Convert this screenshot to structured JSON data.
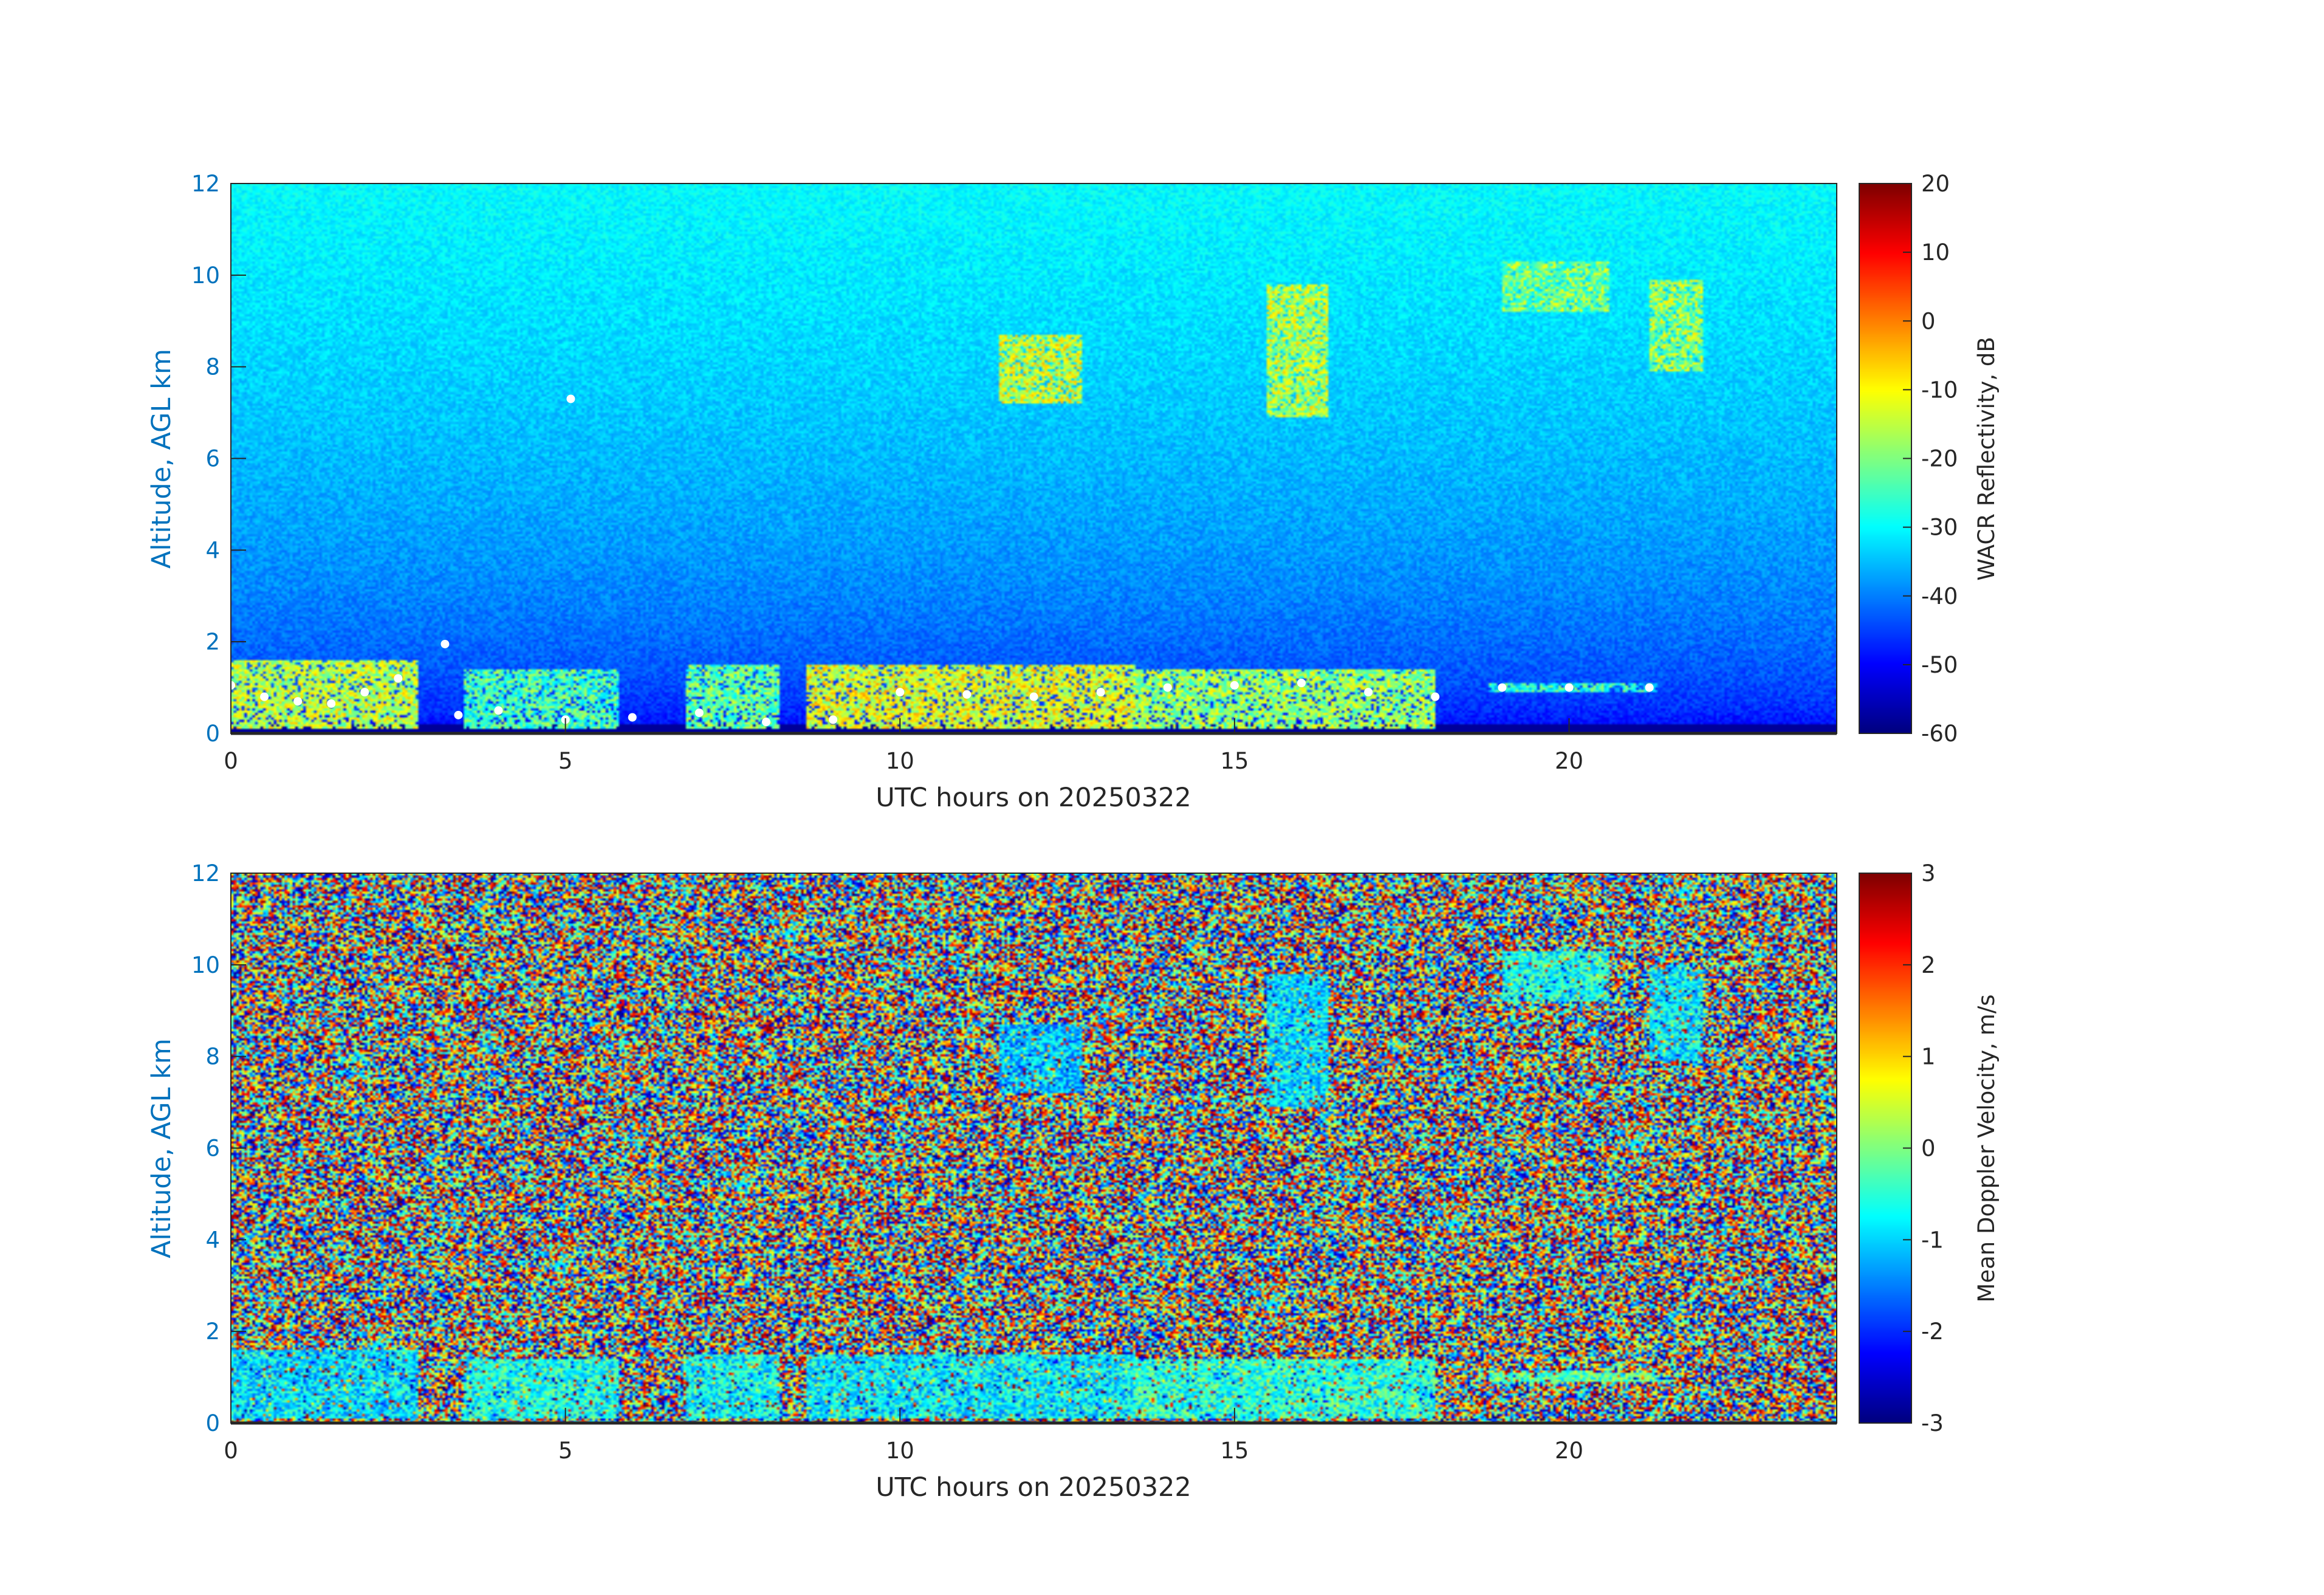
{
  "chart_data": [
    {
      "type": "heatmap",
      "xlabel": "UTC hours on 20250322",
      "ylabel": "Altitude, AGL km",
      "xlim": [
        0,
        24
      ],
      "ylim": [
        0,
        12
      ],
      "xticks": [
        0,
        5,
        10,
        15,
        20
      ],
      "xtick_labels": [
        "0",
        "5",
        "10",
        "15",
        "20"
      ],
      "yticks": [
        0,
        2,
        4,
        6,
        8,
        10,
        12
      ],
      "ytick_labels": [
        "0",
        "2",
        "4",
        "6",
        "8",
        "10",
        "12"
      ],
      "colorbar": {
        "label": "WACR Reflectivity, dB",
        "range": [
          -60,
          20
        ],
        "ticks": [
          20,
          10,
          0,
          -10,
          -20,
          -30,
          -40,
          -50,
          -60
        ],
        "tick_labels": [
          "20",
          "10",
          "0",
          "-10",
          "-20",
          "-30",
          "-40",
          "-50",
          "-60"
        ],
        "colormap": "jet"
      },
      "background": {
        "noise_top": -30,
        "noise_bottom": -55,
        "lowest_layer_km": 0.2,
        "lowest_layer_value": -58
      },
      "features": [
        {
          "x_range": [
            0,
            2.8
          ],
          "alt_range": [
            0.1,
            1.6
          ],
          "value": -15
        },
        {
          "x_range": [
            3.5,
            5.8
          ],
          "alt_range": [
            0.1,
            1.4
          ],
          "value": -25
        },
        {
          "x_range": [
            6.8,
            8.2
          ],
          "alt_range": [
            0.1,
            1.5
          ],
          "value": -22
        },
        {
          "x_range": [
            8.6,
            13.5
          ],
          "alt_range": [
            0.1,
            1.5
          ],
          "value": -12
        },
        {
          "x_range": [
            13.5,
            18
          ],
          "alt_range": [
            0.1,
            1.4
          ],
          "value": -18
        },
        {
          "x_range": [
            18.8,
            21.3
          ],
          "alt_range": [
            0.9,
            1.1
          ],
          "value": -28
        },
        {
          "x_range": [
            11.5,
            12.7
          ],
          "alt_range": [
            7.2,
            8.7
          ],
          "value": -14
        },
        {
          "x_range": [
            15.5,
            16.4
          ],
          "alt_range": [
            6.9,
            9.8
          ],
          "value": -16
        },
        {
          "x_range": [
            19,
            20.6
          ],
          "alt_range": [
            9.2,
            10.3
          ],
          "value": -20
        },
        {
          "x_range": [
            21.2,
            22
          ],
          "alt_range": [
            7.9,
            9.9
          ],
          "value": -18
        }
      ],
      "cloud_base_markers": [
        {
          "x": 0,
          "y": 1.05
        },
        {
          "x": 0.5,
          "y": 0.8
        },
        {
          "x": 1,
          "y": 0.7
        },
        {
          "x": 1.5,
          "y": 0.65
        },
        {
          "x": 2,
          "y": 0.9
        },
        {
          "x": 2.5,
          "y": 1.2
        },
        {
          "x": 3.2,
          "y": 1.95
        },
        {
          "x": 3.4,
          "y": 0.4
        },
        {
          "x": 4,
          "y": 0.5
        },
        {
          "x": 5,
          "y": 0.3
        },
        {
          "x": 5.08,
          "y": 7.3
        },
        {
          "x": 6,
          "y": 0.35
        },
        {
          "x": 7,
          "y": 0.45
        },
        {
          "x": 8,
          "y": 0.25
        },
        {
          "x": 9,
          "y": 0.3
        },
        {
          "x": 10,
          "y": 0.9
        },
        {
          "x": 11,
          "y": 0.85
        },
        {
          "x": 12,
          "y": 0.8
        },
        {
          "x": 13,
          "y": 0.9
        },
        {
          "x": 14,
          "y": 1
        },
        {
          "x": 15,
          "y": 1.05
        },
        {
          "x": 16,
          "y": 1.1
        },
        {
          "x": 17,
          "y": 0.9
        },
        {
          "x": 18,
          "y": 0.8
        },
        {
          "x": 19,
          "y": 1
        },
        {
          "x": 20,
          "y": 1
        },
        {
          "x": 21.2,
          "y": 1
        }
      ]
    },
    {
      "type": "heatmap",
      "xlabel": "UTC hours on 20250322",
      "ylabel": "Altitude, AGL km",
      "xlim": [
        0,
        24
      ],
      "ylim": [
        0,
        12
      ],
      "xticks": [
        0,
        5,
        10,
        15,
        20
      ],
      "xtick_labels": [
        "0",
        "5",
        "10",
        "15",
        "20"
      ],
      "yticks": [
        0,
        2,
        4,
        6,
        8,
        10,
        12
      ],
      "ytick_labels": [
        "0",
        "2",
        "4",
        "6",
        "8",
        "10",
        "12"
      ],
      "colorbar": {
        "label": "Mean Doppler Velocity, m/s",
        "range": [
          -3,
          3
        ],
        "ticks": [
          3,
          2,
          1,
          0,
          -1,
          -2,
          -3
        ],
        "tick_labels": [
          "3",
          "2",
          "1",
          "0",
          "-1",
          "-2",
          "-3"
        ],
        "colormap": "jet"
      },
      "background": {
        "type": "random_noise",
        "range": [
          -3,
          3
        ]
      },
      "features": [
        {
          "x_range": [
            0,
            2.8
          ],
          "alt_range": [
            0.1,
            1.6
          ],
          "value": -0.9
        },
        {
          "x_range": [
            3.5,
            5.8
          ],
          "alt_range": [
            0.1,
            1.4
          ],
          "value": -0.6
        },
        {
          "x_range": [
            6.8,
            8.2
          ],
          "alt_range": [
            0.1,
            1.5
          ],
          "value": -0.7
        },
        {
          "x_range": [
            8.6,
            13.5
          ],
          "alt_range": [
            0.1,
            1.5
          ],
          "value": -0.8
        },
        {
          "x_range": [
            13.5,
            18
          ],
          "alt_range": [
            0.1,
            1.4
          ],
          "value": -0.5
        },
        {
          "x_range": [
            18.8,
            21.3
          ],
          "alt_range": [
            0.9,
            1.1
          ],
          "value": -0.3
        },
        {
          "x_range": [
            11.5,
            12.7
          ],
          "alt_range": [
            7.2,
            8.7
          ],
          "value": -1.1
        },
        {
          "x_range": [
            15.5,
            16.4
          ],
          "alt_range": [
            6.9,
            9.8
          ],
          "value": -0.9
        },
        {
          "x_range": [
            19,
            20.6
          ],
          "alt_range": [
            9.2,
            10.3
          ],
          "value": -0.6
        },
        {
          "x_range": [
            21.2,
            22
          ],
          "alt_range": [
            7.9,
            9.9
          ],
          "value": -0.8
        }
      ]
    }
  ]
}
